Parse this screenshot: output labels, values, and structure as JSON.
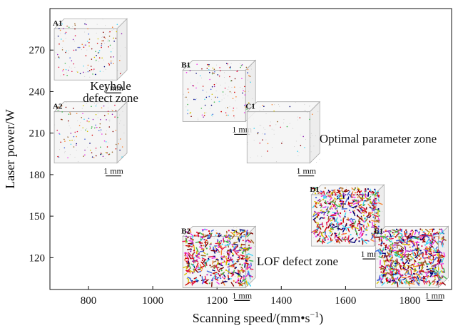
{
  "chart_data": {
    "type": "scatter",
    "xlabel": "Scanning speed/(mm•s",
    "xlabel_sup": "−1",
    "xlabel_close": ")",
    "ylabel": "Laser power/W",
    "xlim": [
      680,
      1930
    ],
    "ylim": [
      97,
      300
    ],
    "xticks": [
      800,
      1000,
      1200,
      1400,
      1600,
      1800
    ],
    "yticks": [
      120,
      150,
      180,
      210,
      240,
      270
    ],
    "samples": [
      {
        "label": "A1",
        "x": 800,
        "y": 270,
        "defect_density": "low",
        "scale": "1 mm"
      },
      {
        "label": "A2",
        "x": 800,
        "y": 210,
        "defect_density": "low",
        "scale": "1 mm"
      },
      {
        "label": "B1",
        "x": 1200,
        "y": 240,
        "defect_density": "low",
        "scale": "1 mm"
      },
      {
        "label": "B2",
        "x": 1200,
        "y": 120,
        "defect_density": "high",
        "scale": "1 mm"
      },
      {
        "label": "C1",
        "x": 1400,
        "y": 210,
        "defect_density": "very-low",
        "scale": "1 mm"
      },
      {
        "label": "D1",
        "x": 1600,
        "y": 150,
        "defect_density": "high",
        "scale": "1 mm"
      },
      {
        "label": "E1",
        "x": 1800,
        "y": 120,
        "defect_density": "very-high",
        "scale": "1 mm"
      }
    ],
    "annotations": [
      {
        "lines": [
          "Keyhole",
          "defect zone"
        ]
      },
      {
        "lines": [
          "Optimal parameter zone"
        ]
      },
      {
        "lines": [
          "LOF defect zone"
        ]
      }
    ],
    "grid": false
  },
  "colors": {
    "axis": "#111111",
    "cube_edge": "#a8a8a8",
    "cube_fill": "#f3f3f3",
    "defects": [
      "#e6194b",
      "#3cb44b",
      "#4363d8",
      "#f58231",
      "#911eb4",
      "#42d4f4",
      "#f032e6",
      "#d4c200",
      "#800000",
      "#000075",
      "#9a6324",
      "#d00000"
    ]
  }
}
